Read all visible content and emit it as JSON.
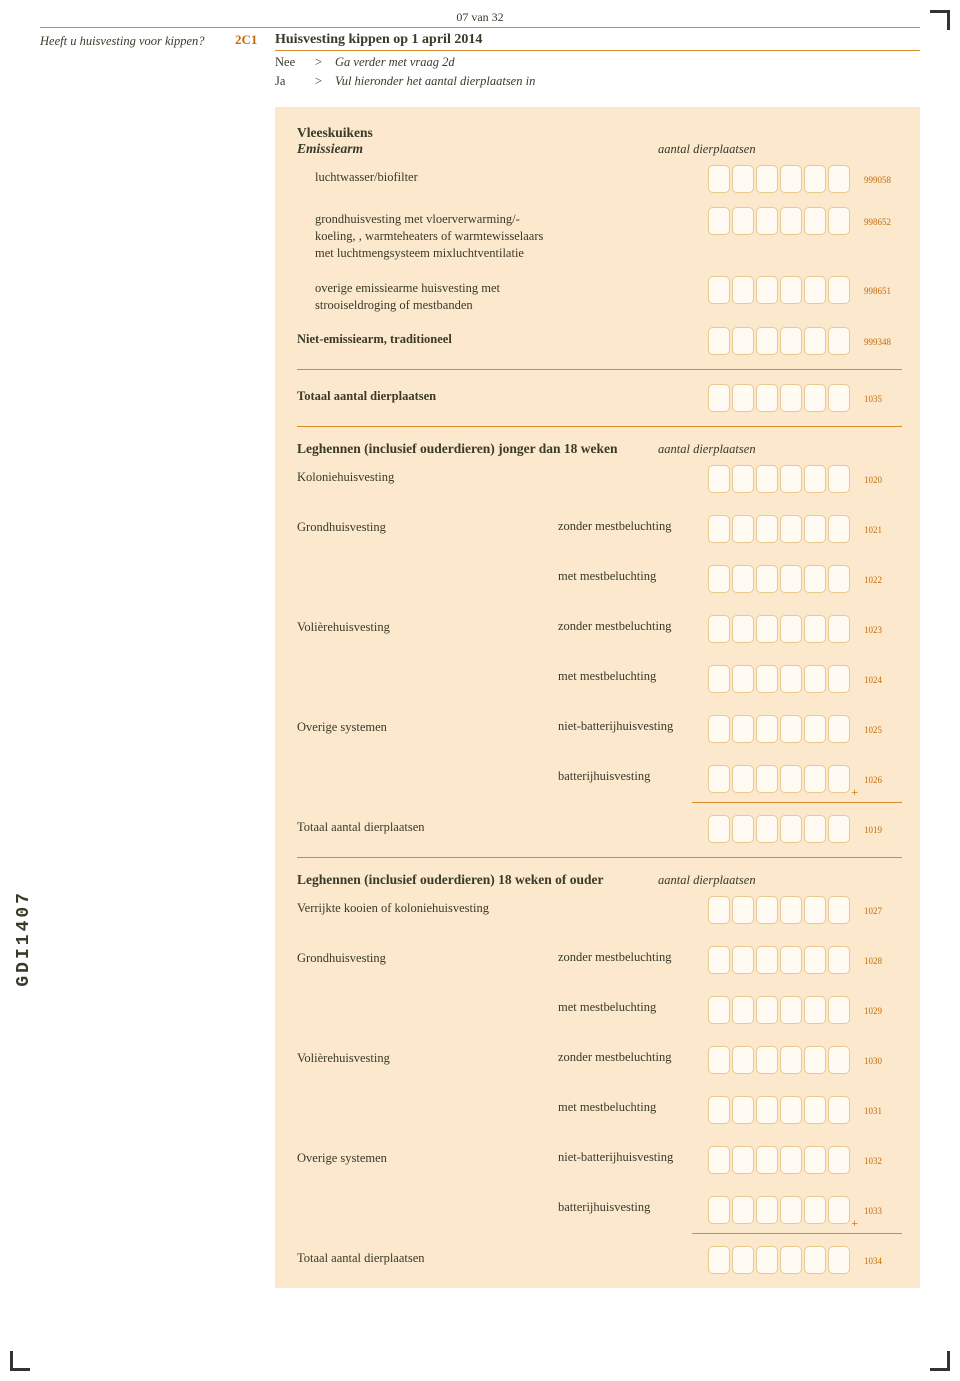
{
  "page": {
    "number": "07 van 32",
    "vertical_code": "GDI1407"
  },
  "colors": {
    "panel_bg": "#fbe8cd",
    "accent": "#c76a0a",
    "rule": "#d98a2b",
    "box_bg": "#fffaf2",
    "box_border": "#eac98e"
  },
  "header": {
    "section_code": "2C1",
    "section_title": "Huisvesting kippen op 1 april 2014",
    "left_question": "Heeft u huisvesting voor kippen?",
    "answers": [
      {
        "opt": "Nee",
        "arrow": ">",
        "text": "Ga verder met vraag 2d"
      },
      {
        "opt": "Ja",
        "arrow": ">",
        "text": "Vul hieronder het aantal dierplaatsen in"
      }
    ]
  },
  "s1": {
    "title": "Vleeskuikens",
    "subtitle": "Emissiearm",
    "col_heading": "aantal dierplaatsen",
    "rows": [
      {
        "label": "luchtwasser/biofilter",
        "code": "999058"
      },
      {
        "label": "grondhuisvesting met vloerverwarming/-koeling, , warmteheaters of warmtewisselaars met luchtmengsysteem mixluchtventilatie",
        "code": "998652"
      },
      {
        "label": "overige emissiearme huisvesting met strooiseldroging of mestbanden",
        "code": "998651"
      }
    ],
    "niet": {
      "label": "Niet-emissiearm, traditioneel",
      "code": "999348"
    },
    "total": {
      "label": "Totaal aantal dierplaatsen",
      "code": "1035"
    }
  },
  "s2": {
    "title": "Leghennen (inclusief ouderdieren) jonger dan 18 weken",
    "col_heading": "aantal dierplaatsen",
    "kolonie": {
      "label": "Koloniehuisvesting",
      "code": "1020"
    },
    "rows": [
      {
        "a": "Grondhuisvesting",
        "b": "zonder mestbeluchting",
        "code": "1021"
      },
      {
        "a": "",
        "b": "met mestbeluchting",
        "code": "1022"
      },
      {
        "a": "Volièrehuisvesting",
        "b": "zonder mestbeluchting",
        "code": "1023"
      },
      {
        "a": "",
        "b": "met mestbeluchting",
        "code": "1024"
      },
      {
        "a": "Overige systemen",
        "b": "niet-batterijhuisvesting",
        "code": "1025"
      },
      {
        "a": "",
        "b": "batterijhuisvesting",
        "code": "1026"
      }
    ],
    "total": {
      "label": "Totaal aantal dierplaatsen",
      "code": "1019"
    }
  },
  "s3": {
    "title": "Leghennen (inclusief ouderdieren) 18 weken of ouder",
    "col_heading": "aantal dierplaatsen",
    "kolonie": {
      "label": "Verrijkte kooien of koloniehuisvesting",
      "code": "1027"
    },
    "rows": [
      {
        "a": "Grondhuisvesting",
        "b": "zonder mestbeluchting",
        "code": "1028"
      },
      {
        "a": "",
        "b": "met mestbeluchting",
        "code": "1029"
      },
      {
        "a": "Volièrehuisvesting",
        "b": "zonder mestbeluchting",
        "code": "1030"
      },
      {
        "a": "",
        "b": "met mestbeluchting",
        "code": "1031"
      },
      {
        "a": "Overige systemen",
        "b": "niet-batterijhuisvesting",
        "code": "1032"
      },
      {
        "a": "",
        "b": "batterijhuisvesting",
        "code": "1033"
      }
    ],
    "total": {
      "label": "Totaal aantal dierplaatsen",
      "code": "1034"
    }
  },
  "boxes_per_row": 6
}
